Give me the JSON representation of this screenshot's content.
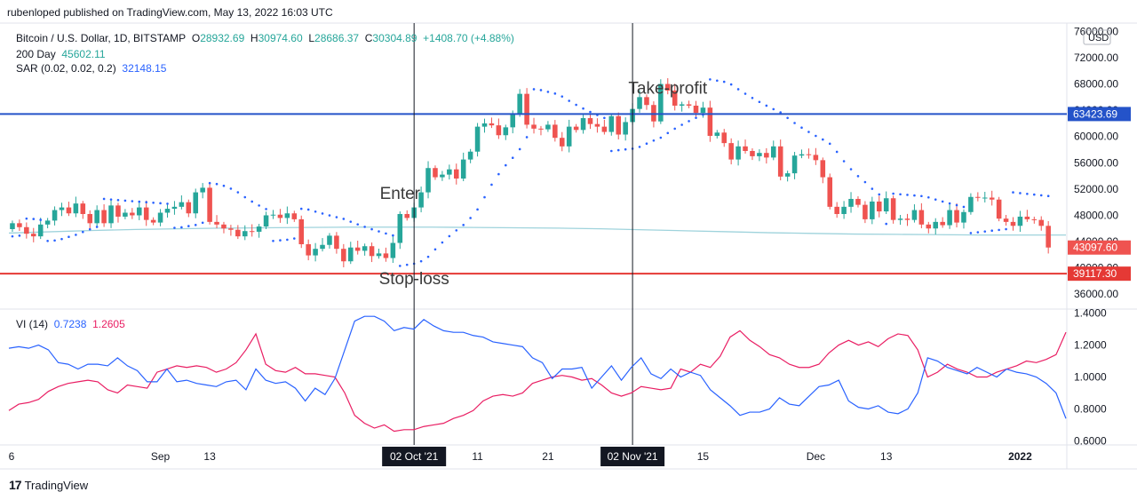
{
  "caption": "rubenloped published on TradingView.com, May 13, 2022 16:03 UTC",
  "legend": {
    "symbol": "Bitcoin / U.S. Dollar, 1D, BITSTAMP",
    "o_label": "O",
    "o_value": "28932.69",
    "h_label": "H",
    "h_value": "30974.60",
    "l_label": "L",
    "l_value": "28686.37",
    "c_label": "C",
    "c_value": "30304.89",
    "change": "+1408.70 (+4.88%)",
    "ma_label": "200 Day",
    "ma_value": "45602.11",
    "sar_label": "SAR (0.02, 0.02, 0.2)",
    "sar_value": "32148.15",
    "vi_label": "VI (14)",
    "vi_plus": "0.7238",
    "vi_minus": "1.2605"
  },
  "footer": {
    "logo": "17",
    "brand": "TradingView"
  },
  "colors": {
    "up": "#26a69a",
    "down": "#ef5350",
    "ma": "#9fd3dc",
    "sar": "#2962ff",
    "tp_line": "#2453c9",
    "sl_line": "#e53935",
    "vi_plus": "#2962ff",
    "vi_minus": "#e91e63"
  },
  "chart_data": {
    "type": "candlestick",
    "title": "Bitcoin / U.S. Dollar, 1D, BITSTAMP",
    "currency": "USD",
    "price_axis": {
      "ticks": [
        "76000.00",
        "72000.00",
        "68000.00",
        "64000.00",
        "60000.00",
        "56000.00",
        "52000.00",
        "48000.00",
        "44000.00",
        "40000.00",
        "36000.00"
      ],
      "tick_values": [
        76000,
        72000,
        68000,
        64000,
        60000,
        56000,
        52000,
        48000,
        44000,
        40000,
        36000
      ],
      "range": [
        34000,
        77000
      ]
    },
    "vi_axis": {
      "ticks": [
        "1.4000",
        "1.2000",
        "1.0000",
        "0.8000",
        "0.6000"
      ],
      "tick_values": [
        1.4,
        1.2,
        1.0,
        0.8,
        0.6
      ],
      "range": [
        0.58,
        1.42
      ]
    },
    "time_axis": {
      "labels": [
        "6",
        "Sep",
        "13",
        "02 Oct '21",
        "11",
        "21",
        "02 Nov '21",
        "15",
        "Dec",
        "13",
        "2022"
      ],
      "label_day_index": [
        0,
        21,
        28,
        57,
        66,
        76,
        88,
        98,
        114,
        124,
        143
      ],
      "highlighted": [
        "02 Oct '21",
        "02 Nov '21"
      ]
    },
    "horizontal_lines": [
      {
        "name": "take-profit-line",
        "value": 63423.69,
        "label": "63423.69"
      },
      {
        "name": "stop-loss-line",
        "value": 39117.3,
        "label": "39117.30"
      }
    ],
    "last_price_label": {
      "value": 43097.6,
      "label": "43097.60"
    },
    "annotations": [
      {
        "text": "Enter",
        "day": 55,
        "price": 50500
      },
      {
        "text": "Take-profit",
        "day": 93,
        "price": 66500
      },
      {
        "text": "Stop-loss",
        "day": 57,
        "price": 37500
      }
    ],
    "vertical_markers_day": [
      57,
      88
    ],
    "candles_close": [
      46800,
      46200,
      45200,
      44800,
      46600,
      47200,
      48800,
      49200,
      48300,
      49800,
      48200,
      46800,
      48800,
      46800,
      49500,
      47800,
      48400,
      48000,
      49200,
      47300,
      46900,
      48400,
      49000,
      49300,
      50000,
      48300,
      51500,
      52200,
      47000,
      46600,
      46000,
      45800,
      44800,
      45600,
      45500,
      46300,
      48000,
      48100,
      47600,
      48300,
      47400,
      43600,
      41900,
      42900,
      43500,
      44900,
      42900,
      41000,
      43100,
      42600,
      43300,
      41800,
      42200,
      41500,
      43800,
      48200,
      47600,
      49200,
      51500,
      55200,
      53800,
      54200,
      55000,
      53600,
      56500,
      57700,
      61500,
      62000,
      61700,
      60200,
      61400,
      63400,
      66500,
      61800,
      61200,
      61100,
      61800,
      59800,
      58500,
      61500,
      61000,
      62800,
      61900,
      61500,
      60700,
      63100,
      60300,
      62200,
      64200,
      66000,
      64800,
      62300,
      68000,
      67000,
      64700,
      64900,
      64700,
      63600,
      64400,
      60100,
      60600,
      59000,
      56500,
      58500,
      57800,
      57000,
      57500,
      56800,
      58500,
      53900,
      54400,
      57100,
      57300,
      57200,
      56400,
      53800,
      49300,
      48200,
      49300,
      50500,
      49600,
      47400,
      50100,
      48600,
      50600,
      47300,
      47500,
      47300,
      48800,
      46600,
      46000,
      47000,
      46500,
      48800,
      46900,
      48500,
      50800,
      50700,
      50700,
      50400,
      47500,
      47000,
      46400,
      47800,
      47400,
      47300,
      46400,
      43100
    ],
    "ma_200": [
      45300,
      45500,
      45700,
      45850,
      45950,
      46050,
      46100,
      46150,
      46200,
      46200,
      46200,
      46150,
      46100,
      46050,
      45950,
      45800,
      45650,
      45500,
      45350,
      45250,
      45150,
      45100,
      45050,
      45000,
      45000,
      45000
    ],
    "sar_points": "dotted parabolic SAR series above/below candles",
    "vi_plus": [
      1.18,
      1.19,
      1.18,
      1.2,
      1.17,
      1.09,
      1.08,
      1.05,
      1.08,
      1.08,
      1.07,
      1.12,
      1.07,
      1.04,
      0.97,
      0.97,
      1.05,
      0.97,
      0.98,
      0.96,
      0.95,
      0.94,
      0.97,
      0.98,
      0.92,
      1.05,
      0.98,
      0.96,
      0.97,
      0.93,
      0.85,
      0.93,
      0.89,
      0.99,
      1.17,
      1.35,
      1.38,
      1.38,
      1.35,
      1.29,
      1.31,
      1.3,
      1.36,
      1.32,
      1.29,
      1.28,
      1.28,
      1.26,
      1.25,
      1.22,
      1.21,
      1.2,
      1.19,
      1.12,
      1.09,
      0.99,
      1.05,
      1.05,
      1.06,
      0.93,
      1.0,
      1.07,
      0.98,
      1.06,
      1.12,
      1.02,
      0.99,
      1.05,
      1.0,
      1.03,
      1.01,
      0.92,
      0.87,
      0.82,
      0.76,
      0.78,
      0.78,
      0.8,
      0.87,
      0.83,
      0.82,
      0.88,
      0.94,
      0.95,
      0.98,
      0.85,
      0.81,
      0.8,
      0.82,
      0.78,
      0.77,
      0.8,
      0.9,
      1.12,
      1.1,
      1.06,
      1.04,
      1.02,
      1.06,
      1.03,
      1.0,
      1.05,
      1.03,
      1.02,
      1.0,
      0.96,
      0.9,
      0.74
    ],
    "vi_minus": [
      0.79,
      0.83,
      0.84,
      0.86,
      0.91,
      0.94,
      0.96,
      0.97,
      0.98,
      0.97,
      0.92,
      0.9,
      0.95,
      0.94,
      0.93,
      1.03,
      1.05,
      1.07,
      1.06,
      1.07,
      1.06,
      1.03,
      1.05,
      1.09,
      1.17,
      1.27,
      1.08,
      1.04,
      1.03,
      1.06,
      1.02,
      1.02,
      1.01,
      1.0,
      0.9,
      0.76,
      0.71,
      0.68,
      0.7,
      0.66,
      0.67,
      0.67,
      0.69,
      0.7,
      0.71,
      0.74,
      0.76,
      0.79,
      0.85,
      0.88,
      0.89,
      0.88,
      0.9,
      0.96,
      0.98,
      1.0,
      1.01,
      1.0,
      0.98,
      0.99,
      0.95,
      0.9,
      0.88,
      0.9,
      0.94,
      0.93,
      0.92,
      0.93,
      1.05,
      1.03,
      1.08,
      1.06,
      1.13,
      1.25,
      1.29,
      1.23,
      1.19,
      1.14,
      1.12,
      1.08,
      1.06,
      1.06,
      1.08,
      1.15,
      1.2,
      1.23,
      1.2,
      1.22,
      1.19,
      1.24,
      1.27,
      1.26,
      1.17,
      1.0,
      1.03,
      1.08,
      1.05,
      1.03,
      1.0,
      1.0,
      1.03,
      1.05,
      1.07,
      1.1,
      1.09,
      1.11,
      1.14,
      1.28
    ]
  }
}
